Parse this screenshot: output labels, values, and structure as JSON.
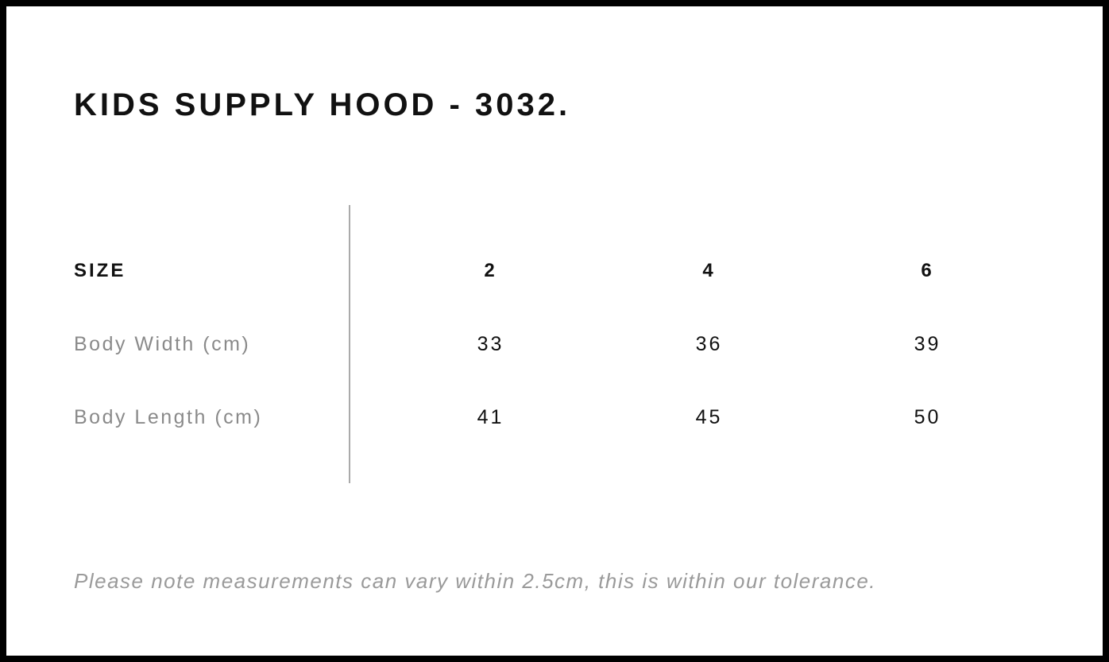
{
  "page": {
    "title": "KIDS SUPPLY HOOD - 3032.",
    "note": "Please note measurements can vary within 2.5cm, this is within our tolerance."
  },
  "size_chart": {
    "header_label": "SIZE",
    "sizes": [
      "2",
      "4",
      "6"
    ],
    "rows": [
      {
        "label": "Body Width (cm)",
        "values": [
          "33",
          "36",
          "39"
        ]
      },
      {
        "label": "Body Length (cm)",
        "values": [
          "41",
          "45",
          "50"
        ]
      }
    ]
  },
  "chart_data": {
    "type": "table",
    "title": "KIDS SUPPLY HOOD - 3032.",
    "columns": [
      "SIZE",
      "2",
      "4",
      "6"
    ],
    "rows": [
      [
        "Body Width (cm)",
        33,
        36,
        39
      ],
      [
        "Body Length (cm)",
        41,
        45,
        50
      ]
    ],
    "footnote": "Please note measurements can vary within 2.5cm, this is within our tolerance."
  },
  "colors": {
    "text": "#111111",
    "label_gray": "#8a8a8a",
    "note_gray": "#9a9a9a",
    "divider": "#aaaaaa",
    "border": "#000000",
    "bg": "#ffffff"
  }
}
